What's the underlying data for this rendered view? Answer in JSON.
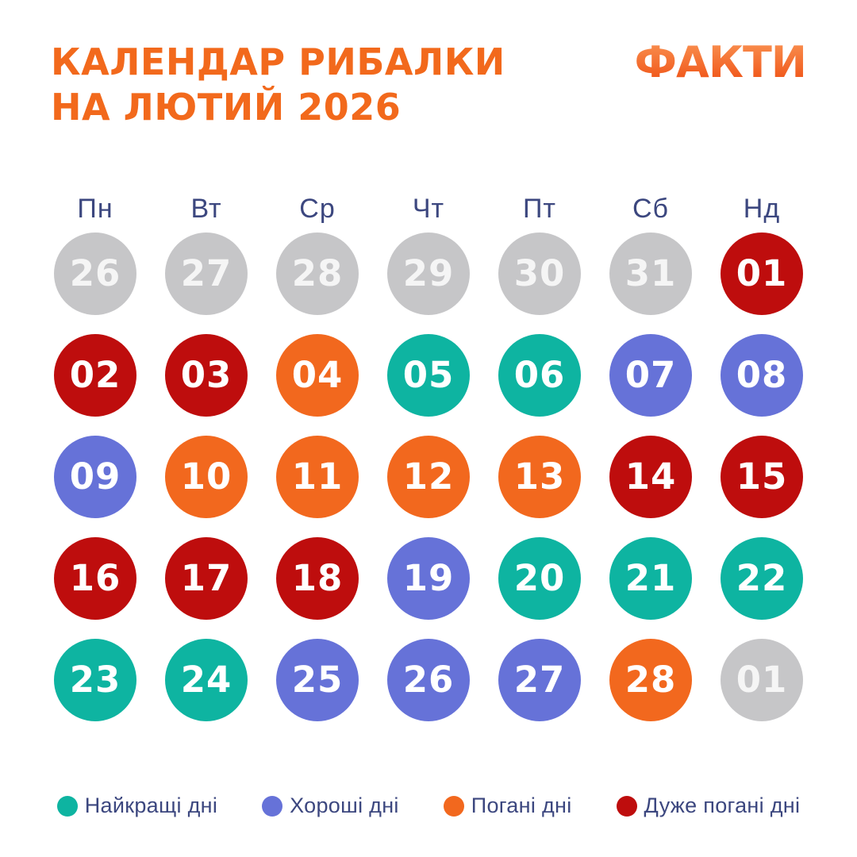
{
  "header": {
    "title_line1": "КАЛЕНДАР РИБАЛКИ",
    "title_line2": "НА ЛЮТИЙ 2026",
    "logo_text": "ФАКТИ"
  },
  "colors": {
    "best": "#0EB4A1",
    "good": "#6672D8",
    "bad": "#F2681E",
    "very_bad": "#BE0D0D",
    "other_month": "#C6C6C8",
    "title_orange": "#F2691C",
    "navy_text": "#3C477F"
  },
  "legend": [
    {
      "type": "best",
      "label": "Найкращі дні"
    },
    {
      "type": "good",
      "label": "Хороші дні"
    },
    {
      "type": "bad",
      "label": "Погані дні"
    },
    {
      "type": "very_bad",
      "label": "Дуже погані дні"
    }
  ],
  "chart_data": {
    "type": "heatmap",
    "title": "КАЛЕНДАР РИБАЛКИ НА ЛЮТИЙ 2026",
    "weekday_headers": [
      "Пн",
      "Вт",
      "Ср",
      "Чт",
      "Пт",
      "Сб",
      "Нд"
    ],
    "legend_position": "bottom",
    "days": [
      {
        "day": "26",
        "type": "other_month"
      },
      {
        "day": "27",
        "type": "other_month"
      },
      {
        "day": "28",
        "type": "other_month"
      },
      {
        "day": "29",
        "type": "other_month"
      },
      {
        "day": "30",
        "type": "other_month"
      },
      {
        "day": "31",
        "type": "other_month"
      },
      {
        "day": "01",
        "type": "very_bad"
      },
      {
        "day": "02",
        "type": "very_bad"
      },
      {
        "day": "03",
        "type": "very_bad"
      },
      {
        "day": "04",
        "type": "bad"
      },
      {
        "day": "05",
        "type": "best"
      },
      {
        "day": "06",
        "type": "best"
      },
      {
        "day": "07",
        "type": "good"
      },
      {
        "day": "08",
        "type": "good"
      },
      {
        "day": "09",
        "type": "good"
      },
      {
        "day": "10",
        "type": "bad"
      },
      {
        "day": "11",
        "type": "bad"
      },
      {
        "day": "12",
        "type": "bad"
      },
      {
        "day": "13",
        "type": "bad"
      },
      {
        "day": "14",
        "type": "very_bad"
      },
      {
        "day": "15",
        "type": "very_bad"
      },
      {
        "day": "16",
        "type": "very_bad"
      },
      {
        "day": "17",
        "type": "very_bad"
      },
      {
        "day": "18",
        "type": "very_bad"
      },
      {
        "day": "19",
        "type": "good"
      },
      {
        "day": "20",
        "type": "best"
      },
      {
        "day": "21",
        "type": "best"
      },
      {
        "day": "22",
        "type": "best"
      },
      {
        "day": "23",
        "type": "best"
      },
      {
        "day": "24",
        "type": "best"
      },
      {
        "day": "25",
        "type": "good"
      },
      {
        "day": "26",
        "type": "good"
      },
      {
        "day": "27",
        "type": "good"
      },
      {
        "day": "28",
        "type": "bad"
      },
      {
        "day": "01",
        "type": "other_month"
      }
    ]
  }
}
